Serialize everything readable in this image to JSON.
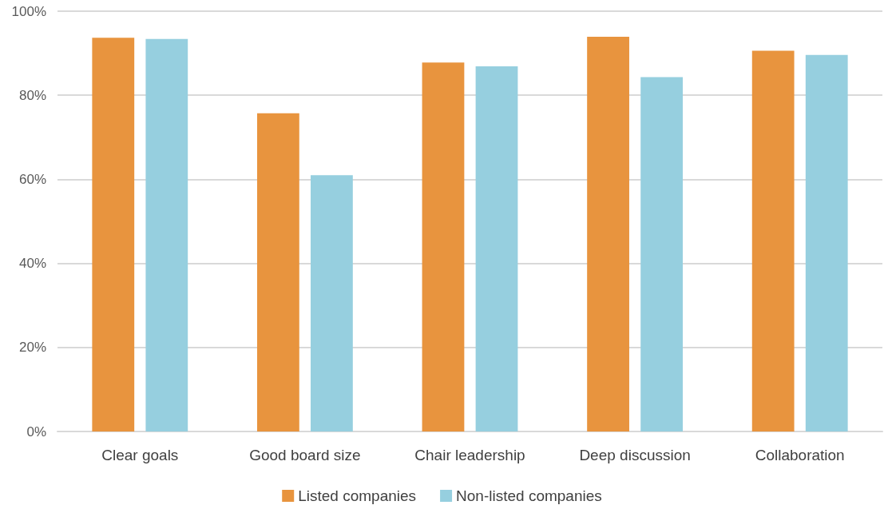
{
  "chart_data": {
    "type": "bar",
    "categories": [
      "Clear goals",
      "Good board size",
      "Chair leadership",
      "Deep discussion",
      "Collaboration"
    ],
    "series": [
      {
        "name": "Listed companies",
        "color": "#e8943e",
        "values": [
          93.7,
          75.7,
          87.8,
          93.9,
          90.6
        ]
      },
      {
        "name": "Non-listed companies",
        "color": "#96cfdf",
        "values": [
          93.4,
          61.0,
          86.9,
          84.3,
          89.6
        ]
      }
    ],
    "ylim": [
      0,
      100
    ],
    "yticks": [
      {
        "value": 0,
        "label": "0%"
      },
      {
        "value": 20,
        "label": "20%"
      },
      {
        "value": 40,
        "label": "40%"
      },
      {
        "value": 60,
        "label": "60%"
      },
      {
        "value": 80,
        "label": "80%"
      },
      {
        "value": 100,
        "label": "100%"
      }
    ],
    "grid": "y",
    "legend": "bottom"
  }
}
